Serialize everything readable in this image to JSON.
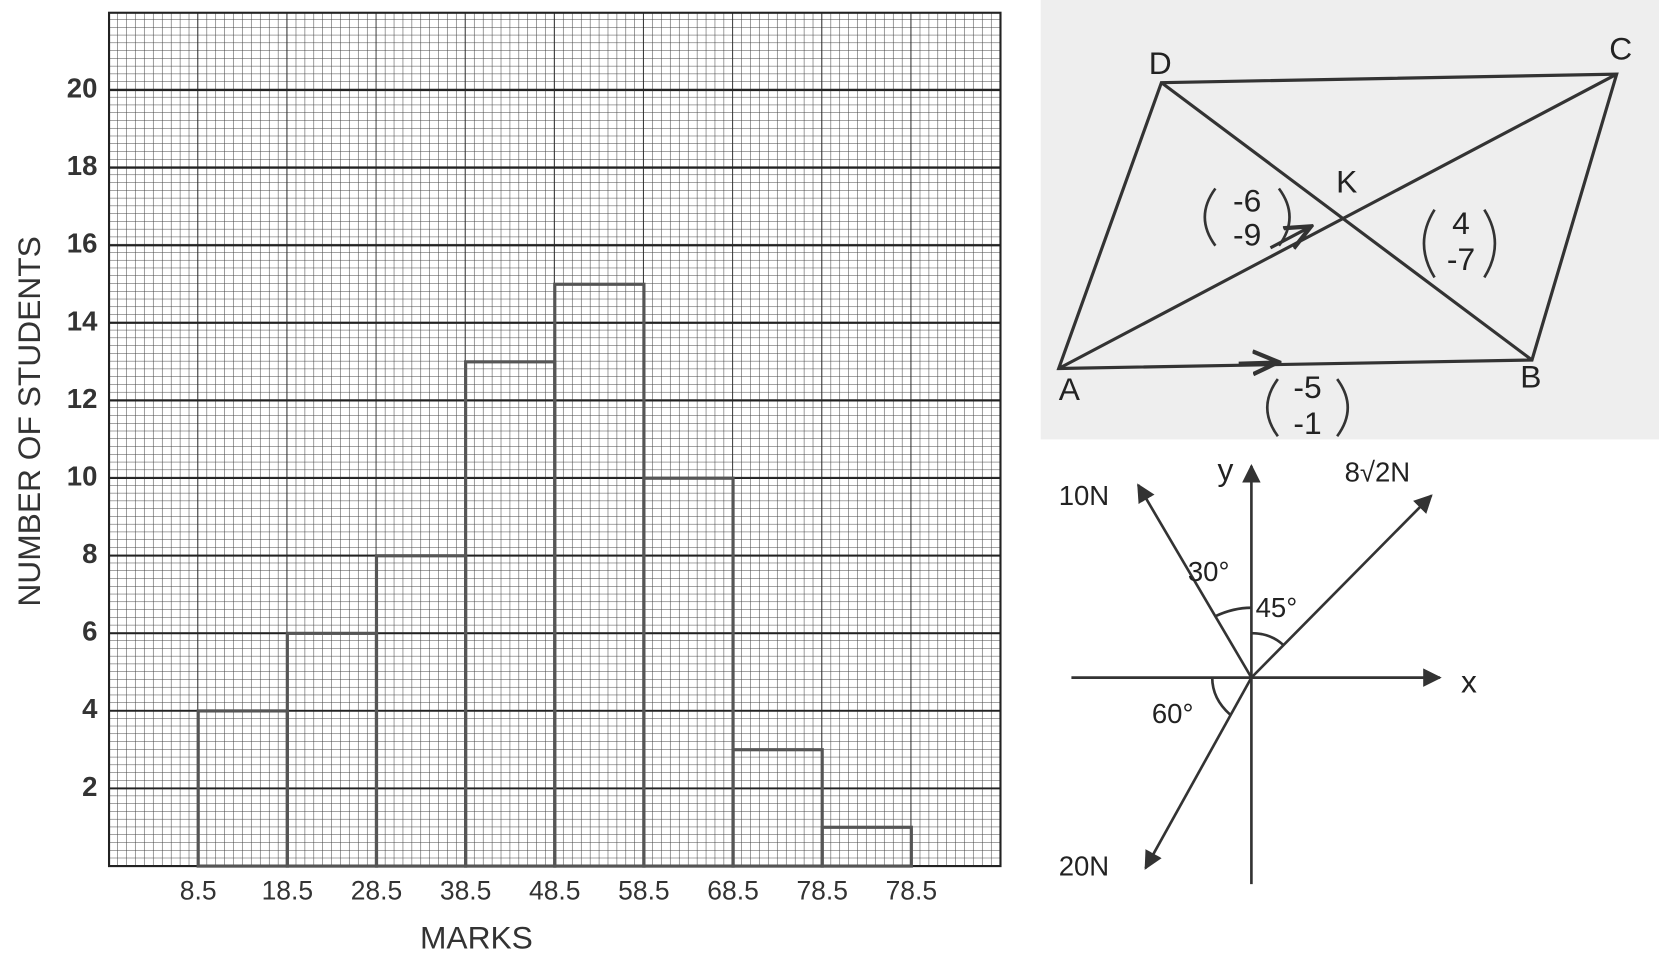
{
  "chart_data": {
    "type": "histogram",
    "ylabel": "NUMBER OF STUDENTS",
    "xlabel": "MARKS",
    "bins": [
      "8.5",
      "18.5",
      "28.5",
      "38.5",
      "48.5",
      "58.5",
      "68.5",
      "78.5",
      "78.5"
    ],
    "values": [
      4,
      6,
      8,
      13,
      15,
      10,
      3,
      1
    ],
    "color": "#555555",
    "ylim": [
      0,
      22
    ],
    "yticks": [
      2,
      4,
      6,
      8,
      10,
      12,
      14,
      16,
      18,
      20
    ],
    "grid": true
  },
  "parallelogram": {
    "vertices": [
      "A",
      "B",
      "C",
      "D"
    ],
    "intersection": "K",
    "vectors": [
      {
        "top": "-6",
        "bottom": "-9"
      },
      {
        "top": "4",
        "bottom": "-7"
      },
      {
        "top": "-5",
        "bottom": "-1"
      }
    ]
  },
  "forces": {
    "axes": [
      "x",
      "y"
    ],
    "labels": [
      "10N",
      "8√2N",
      "20N"
    ],
    "angles": [
      "30°",
      "45°",
      "60°"
    ]
  }
}
